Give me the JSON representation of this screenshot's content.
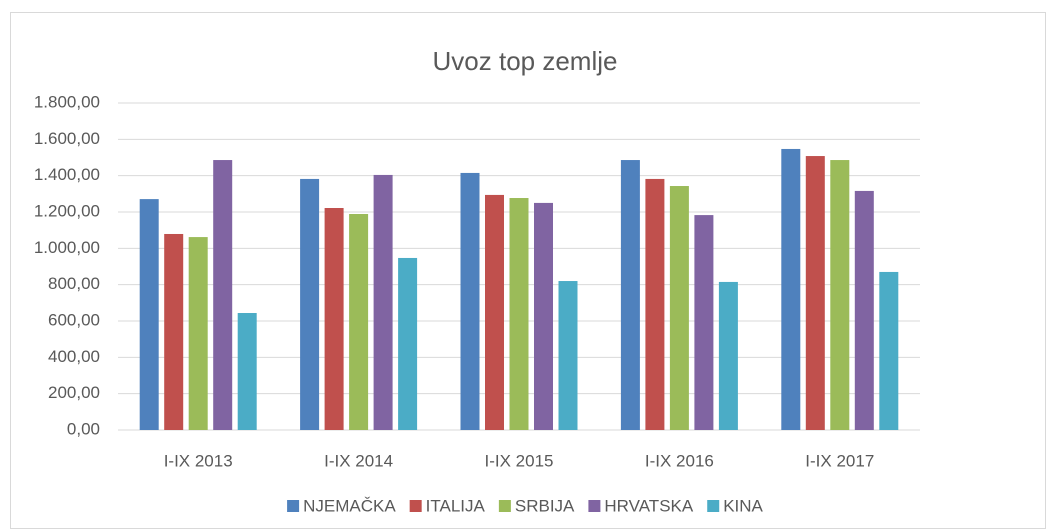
{
  "chart_data": {
    "type": "bar",
    "title": "Uvoz top zemlje",
    "categories": [
      "I-IX 2013",
      "I-IX 2014",
      "I-IX 2015",
      "I-IX 2016",
      "I-IX 2017"
    ],
    "series": [
      {
        "name": "NJEMAČKA",
        "color": "#4f81bd",
        "values": [
          1271,
          1382,
          1415,
          1486,
          1547
        ]
      },
      {
        "name": "ITALIJA",
        "color": "#c0504d",
        "values": [
          1079,
          1222,
          1294,
          1382,
          1508
        ]
      },
      {
        "name": "SRBIJA",
        "color": "#9bbb59",
        "values": [
          1062,
          1189,
          1277,
          1343,
          1486
        ]
      },
      {
        "name": "HRVATSKA",
        "color": "#8064a2",
        "values": [
          1486,
          1404,
          1250,
          1183,
          1316
        ]
      },
      {
        "name": "KINA",
        "color": "#4bacc6",
        "values": [
          644,
          947,
          820,
          815,
          870
        ]
      }
    ],
    "ylim": [
      0,
      1800
    ],
    "yticks": [
      {
        "value": 0,
        "label": "0,00"
      },
      {
        "value": 200,
        "label": "200,00"
      },
      {
        "value": 400,
        "label": "400,00"
      },
      {
        "value": 600,
        "label": "600,00"
      },
      {
        "value": 800,
        "label": "800,00"
      },
      {
        "value": 1000,
        "label": "1.000,00"
      },
      {
        "value": 1200,
        "label": "1.200,00"
      },
      {
        "value": 1400,
        "label": "1.400,00"
      },
      {
        "value": 1600,
        "label": "1.600,00"
      },
      {
        "value": 1800,
        "label": "1.800,00"
      }
    ],
    "grid": true,
    "legend": "bottom"
  }
}
